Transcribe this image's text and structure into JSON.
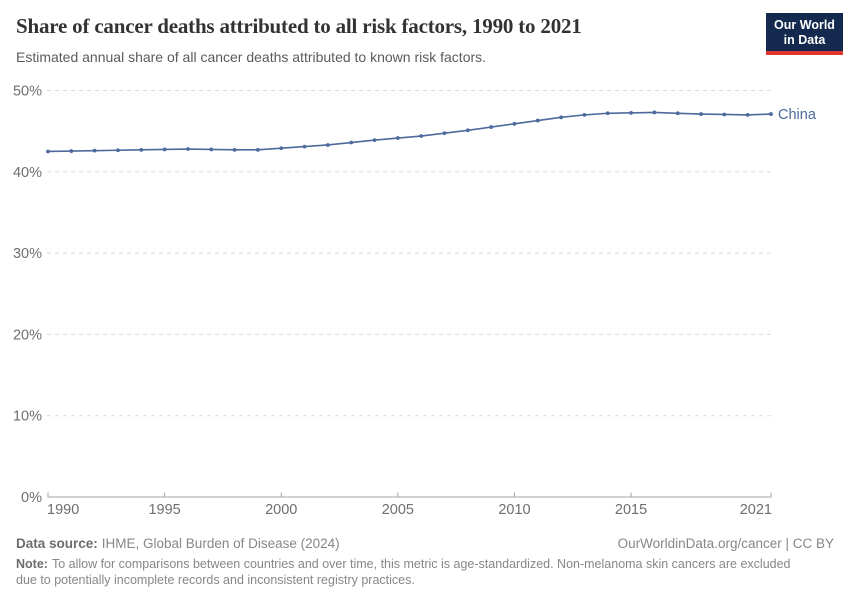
{
  "logo": {
    "line1": "Our World",
    "line2": "in Data",
    "bg_color": "#13294d",
    "accent_color": "#e0362d"
  },
  "chart_data": {
    "type": "line",
    "title": "Share of cancer deaths attributed to all risk factors, 1990 to 2021",
    "subtitle": "Estimated annual share of all cancer deaths attributed to known risk factors.",
    "xlim": [
      1990,
      2021
    ],
    "ylim": [
      0,
      50
    ],
    "x_ticks": [
      1990,
      1995,
      2000,
      2005,
      2010,
      2015,
      2021
    ],
    "y_ticks": [
      0,
      10,
      20,
      30,
      40,
      50
    ],
    "y_suffix": "%",
    "grid": "horizontal-dashed",
    "legend": "end-of-line-label",
    "series": [
      {
        "name": "China",
        "color": "#4C6A9C",
        "x": [
          1990,
          1991,
          1992,
          1993,
          1994,
          1995,
          1996,
          1997,
          1998,
          1999,
          2000,
          2001,
          2002,
          2003,
          2004,
          2005,
          2006,
          2007,
          2008,
          2009,
          2010,
          2011,
          2012,
          2013,
          2014,
          2015,
          2016,
          2017,
          2018,
          2019,
          2020,
          2021
        ],
        "values": [
          42.5,
          42.55,
          42.6,
          42.65,
          42.7,
          42.75,
          42.8,
          42.75,
          42.7,
          42.7,
          42.9,
          43.1,
          43.3,
          43.6,
          43.9,
          44.15,
          44.4,
          44.75,
          45.1,
          45.5,
          45.9,
          46.3,
          46.7,
          47.0,
          47.2,
          47.25,
          47.3,
          47.2,
          47.1,
          47.05,
          47.0,
          47.1
        ]
      }
    ]
  },
  "footer": {
    "source_label": "Data source:",
    "source_text": "IHME, Global Burden of Disease (2024)",
    "attribution": "OurWorldinData.org/cancer | CC BY",
    "note_label": "Note:",
    "note_text": "To allow for comparisons between countries and over time, this metric is age-standardized. Non-melanoma skin cancers are excluded due to potentially incomplete records and inconsistent registry practices."
  }
}
